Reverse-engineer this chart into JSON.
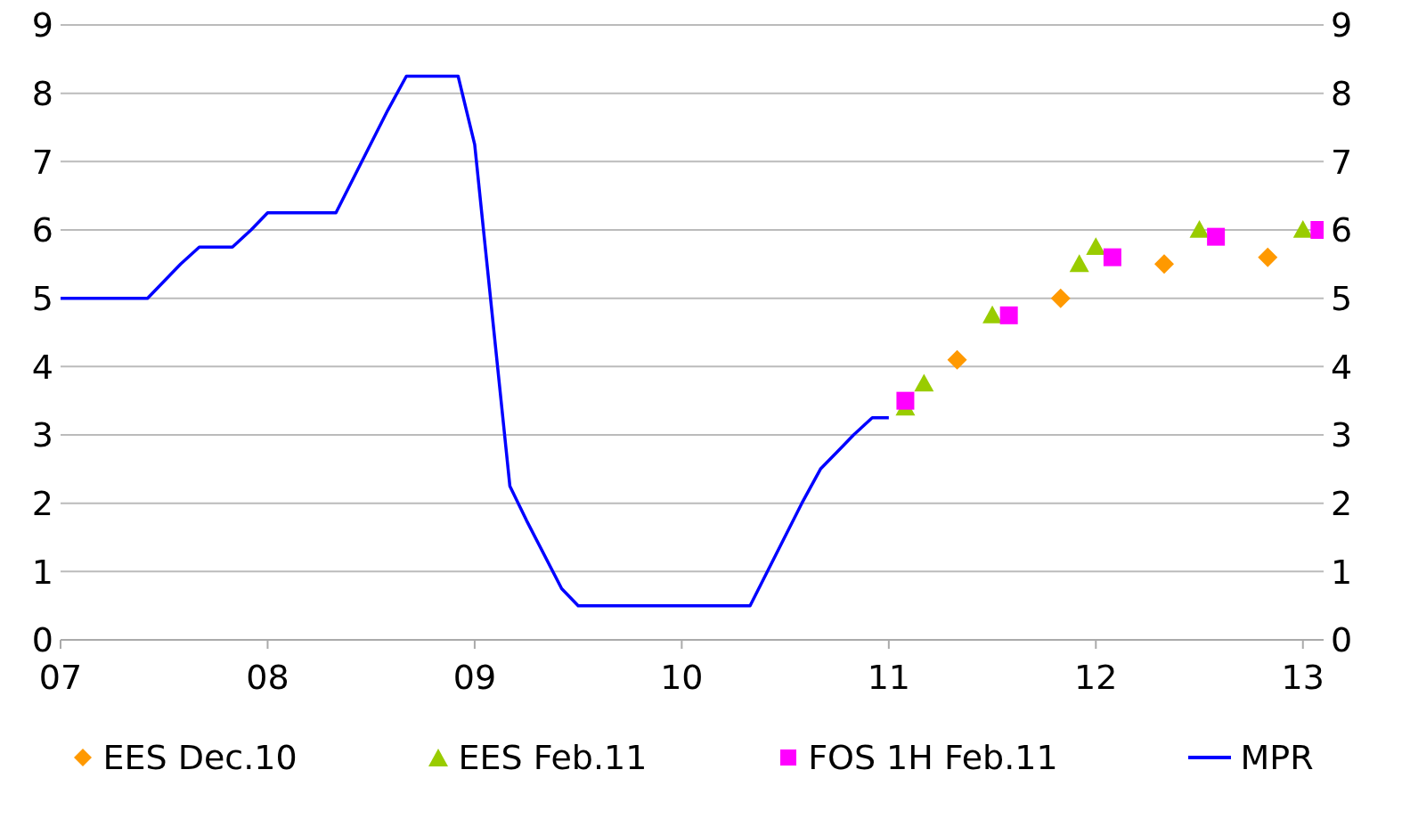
{
  "chart_data": {
    "type": "scatter",
    "xlim": [
      7,
      13.1
    ],
    "xticks": [
      {
        "value": 7,
        "label": "07"
      },
      {
        "value": 8,
        "label": "08"
      },
      {
        "value": 9,
        "label": "09"
      },
      10,
      11,
      12,
      13
    ],
    "ylim": [
      0,
      9
    ],
    "yticks": [
      0,
      1,
      2,
      3,
      4,
      5,
      6,
      7,
      8,
      9
    ],
    "y2lim": [
      0,
      9
    ],
    "y2ticks": [
      0,
      1,
      2,
      3,
      4,
      5,
      6,
      7,
      8,
      9
    ],
    "grid": "y",
    "legend": "bottom",
    "series": [
      {
        "name": "EES Dec.10",
        "marker": "diamond",
        "color": "#ff9900",
        "x": [
          11.33,
          11.83,
          12.33,
          12.83
        ],
        "values": [
          4.1,
          5.0,
          5.5,
          5.6
        ]
      },
      {
        "name": "EES Feb.11",
        "marker": "triangle",
        "color": "#99cc00",
        "x": [
          11.08,
          11.17,
          11.5,
          11.92,
          12.0,
          12.5,
          13.0
        ],
        "values": [
          3.4,
          3.75,
          4.75,
          5.5,
          5.75,
          6.0,
          6.0
        ]
      },
      {
        "name": "FOS 1H Feb.11",
        "marker": "square",
        "color": "#ff00ff",
        "x": [
          11.08,
          11.58,
          12.08,
          12.58,
          13.08
        ],
        "values": [
          3.5,
          4.75,
          5.6,
          5.9,
          6.0
        ]
      },
      {
        "name": "MPR",
        "type": "line",
        "marker": "none",
        "line_style": "solid",
        "color": "#0000ff",
        "x": [
          7.0,
          7.42,
          7.58,
          7.67,
          7.83,
          7.92,
          8.0,
          8.33,
          8.58,
          8.67,
          8.92,
          9.0,
          9.17,
          9.25,
          9.42,
          9.5,
          10.33,
          10.58,
          10.67,
          10.75,
          10.83,
          10.92,
          11.0
        ],
        "values": [
          5.0,
          5.0,
          5.5,
          5.75,
          5.75,
          6.0,
          6.25,
          6.25,
          7.75,
          8.25,
          8.25,
          7.25,
          2.25,
          1.75,
          0.75,
          0.5,
          0.5,
          2.0,
          2.5,
          2.75,
          3.0,
          3.25,
          3.25
        ]
      }
    ]
  }
}
